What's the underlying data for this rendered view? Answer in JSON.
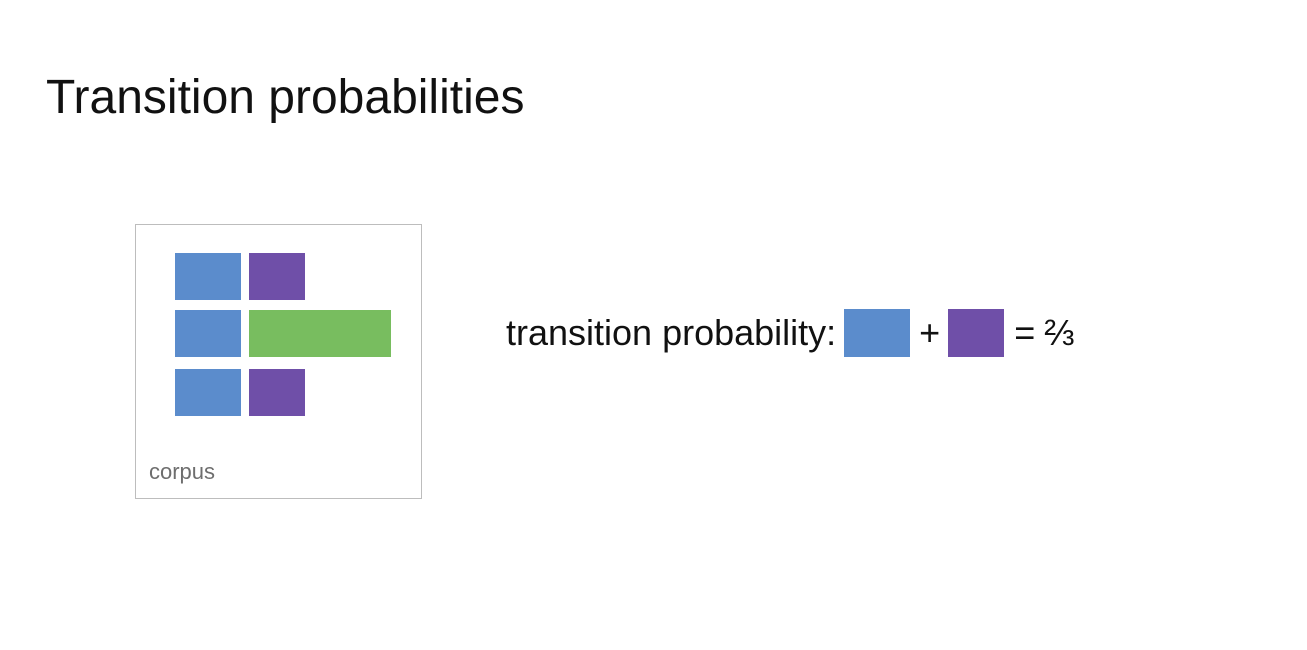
{
  "title": "Transition probabilities",
  "colors": {
    "blue": "#5b8ccc",
    "purple": "#6f4fa8",
    "green": "#78bd5f",
    "frame": "#bdbdbd",
    "label": "#6e6e6e"
  },
  "corpus": {
    "label": "corpus",
    "rows": [
      [
        "blue",
        "purple"
      ],
      [
        "blue",
        "green"
      ],
      [
        "blue",
        "purple"
      ]
    ]
  },
  "equation": {
    "label": "transition probability:",
    "term1_color": "blue",
    "plus": "+",
    "term2_color": "purple",
    "equals": "=",
    "result": "⅔"
  }
}
